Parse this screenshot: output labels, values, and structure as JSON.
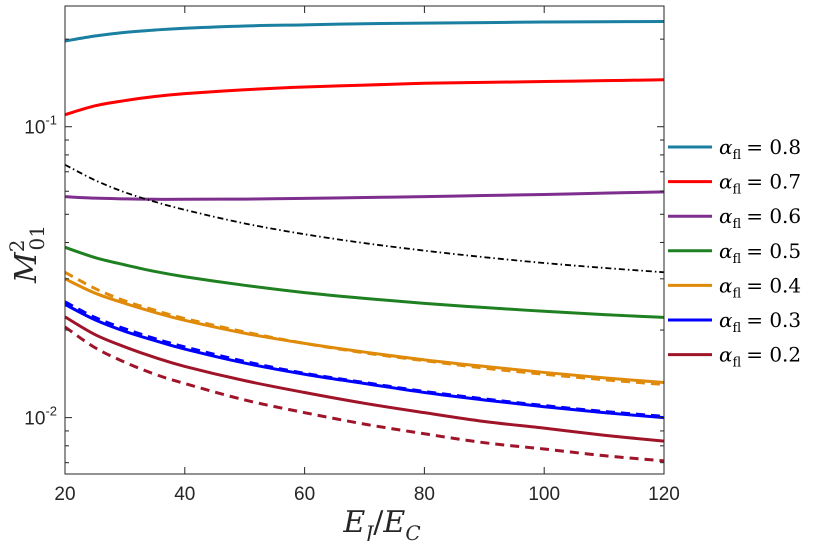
{
  "chart_data": {
    "type": "line",
    "title": "",
    "xlabel": "E_J/E_C",
    "ylabel": "M_01^2",
    "xscale": "linear",
    "yscale": "log",
    "xlim": [
      20,
      120
    ],
    "ylim": [
      0.0064,
      0.26
    ],
    "xticks": [
      20,
      40,
      60,
      80,
      100,
      120
    ],
    "xtick_labels": [
      "20",
      "40",
      "60",
      "80",
      "100",
      "120"
    ],
    "yticks": [
      0.01,
      0.1
    ],
    "ytick_labels": [
      {
        "base": "10",
        "exp": "-2"
      },
      {
        "base": "10",
        "exp": "-1"
      }
    ],
    "legend_position": "right",
    "x": [
      20,
      25,
      30,
      35,
      40,
      50,
      60,
      70,
      80,
      90,
      100,
      110,
      120
    ],
    "series": [
      {
        "name": "0.8",
        "label_symbol": "α",
        "label_sub": "fl",
        "label_prefix": "= ",
        "color": "#1a7fa0",
        "style": "solid",
        "values": [
          0.197,
          0.205,
          0.211,
          0.215,
          0.218,
          0.222,
          0.224,
          0.226,
          0.227,
          0.228,
          0.229,
          0.2295,
          0.23
        ]
      },
      {
        "name": "0.7",
        "label_symbol": "α",
        "label_sub": "fl",
        "label_prefix": "= ",
        "color": "#ff0000",
        "style": "solid",
        "values": [
          0.11,
          0.118,
          0.123,
          0.127,
          0.13,
          0.134,
          0.137,
          0.139,
          0.141,
          0.142,
          0.143,
          0.144,
          0.145
        ]
      },
      {
        "name": "0.6",
        "label_symbol": "α",
        "label_sub": "fl",
        "label_prefix": "= ",
        "color": "#7e2f8e",
        "style": "solid",
        "values": [
          0.0575,
          0.0568,
          0.0565,
          0.0563,
          0.0563,
          0.0564,
          0.0567,
          0.0571,
          0.0575,
          0.058,
          0.0585,
          0.0591,
          0.0597
        ]
      },
      {
        "name": "0.5",
        "label_symbol": "α",
        "label_sub": "fl",
        "label_prefix": "= ",
        "color": "#1e8020",
        "style": "solid",
        "values": [
          0.0385,
          0.0355,
          0.0335,
          0.0318,
          0.0305,
          0.0285,
          0.0269,
          0.0257,
          0.0247,
          0.0239,
          0.0232,
          0.0226,
          0.0221
        ]
      },
      {
        "name": "0.4",
        "label_symbol": "α",
        "label_sub": "fl",
        "label_prefix": "= ",
        "color": "#e08a0a",
        "style": "solid",
        "values": [
          0.03,
          0.0268,
          0.0247,
          0.023,
          0.0216,
          0.0195,
          0.018,
          0.0168,
          0.0158,
          0.015,
          0.0143,
          0.0137,
          0.0132
        ]
      },
      {
        "name": "0.3",
        "label_symbol": "α",
        "label_sub": "fl",
        "label_prefix": "= ",
        "color": "#0000ff",
        "style": "solid",
        "values": [
          0.0245,
          0.0217,
          0.0198,
          0.0184,
          0.0172,
          0.0154,
          0.0141,
          0.0131,
          0.0122,
          0.0115,
          0.0109,
          0.0104,
          0.01
        ]
      },
      {
        "name": "0.2",
        "label_symbol": "α",
        "label_sub": "fl",
        "label_prefix": "= ",
        "color": "#a0142a",
        "style": "solid",
        "values": [
          0.0222,
          0.0193,
          0.0175,
          0.0161,
          0.015,
          0.0134,
          0.0122,
          0.0112,
          0.0104,
          0.0097,
          0.0092,
          0.0087,
          0.0083
        ]
      }
    ],
    "reference_lines": [
      {
        "name": "0.4 dashed",
        "color": "#e08a0a",
        "style": "dashed",
        "values": [
          0.0316,
          0.0278,
          0.0252,
          0.0234,
          0.0219,
          0.0197,
          0.018,
          0.0167,
          0.0157,
          0.0148,
          0.0141,
          0.0135,
          0.013
        ]
      },
      {
        "name": "0.3 dashed",
        "color": "#0000ff",
        "style": "dashed",
        "values": [
          0.025,
          0.0221,
          0.0202,
          0.0187,
          0.0175,
          0.0156,
          0.0142,
          0.0132,
          0.0123,
          0.0116,
          0.011,
          0.0105,
          0.0101
        ]
      },
      {
        "name": "0.2 dashed",
        "color": "#a0142a",
        "style": "dashed",
        "values": [
          0.0205,
          0.0174,
          0.0155,
          0.0141,
          0.0131,
          0.0115,
          0.0104,
          0.0095,
          0.0088,
          0.0082,
          0.0078,
          0.0074,
          0.0071
        ]
      },
      {
        "name": "black dash-dot",
        "color": "#000000",
        "style": "dashdot",
        "values": [
          0.074,
          0.0655,
          0.0595,
          0.0552,
          0.0518,
          0.0465,
          0.0427,
          0.0398,
          0.0375,
          0.0356,
          0.034,
          0.0327,
          0.0316
        ]
      }
    ]
  }
}
